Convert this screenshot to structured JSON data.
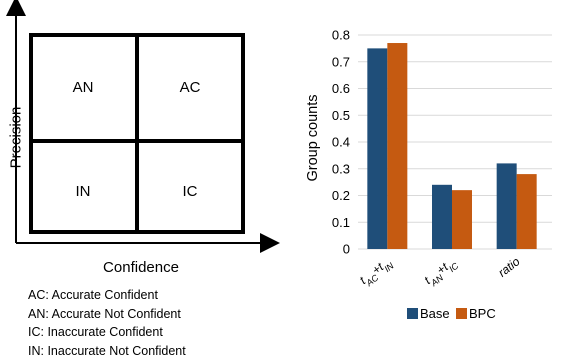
{
  "quadrant": {
    "x_axis_label": "Confidence",
    "y_axis_label": "Precision",
    "cells": {
      "top_left": "AN",
      "top_right": "AC",
      "bottom_left": "IN",
      "bottom_right": "IC"
    },
    "definitions": [
      "AC: Accurate Confident",
      "AN: Accurate Not Confident",
      "IC: Inaccurate Confident",
      "IN: Inaccurate Not Confident"
    ]
  },
  "chart_data": {
    "type": "bar",
    "ylabel": "Group counts",
    "xlabel": "",
    "ylim": [
      0,
      0.8
    ],
    "yticks": [
      "0",
      "0.1",
      "0.2",
      "0.3",
      "0.4",
      "0.5",
      "0.6",
      "0.7",
      "0.8"
    ],
    "categories": [
      {
        "main": "t",
        "sub1": "AC",
        "mid": "+t",
        "sub2": "IN"
      },
      {
        "main": "t",
        "sub1": "AN",
        "mid": "+t",
        "sub2": "IC"
      },
      {
        "main": "ratio",
        "sub1": "",
        "mid": "",
        "sub2": ""
      }
    ],
    "series": [
      {
        "name": "Base",
        "color": "#1f4e79",
        "values": [
          0.75,
          0.24,
          0.32
        ]
      },
      {
        "name": "BPC",
        "color": "#c55a11",
        "values": [
          0.77,
          0.22,
          0.28
        ]
      }
    ],
    "grid": true,
    "legend": "bottom"
  }
}
